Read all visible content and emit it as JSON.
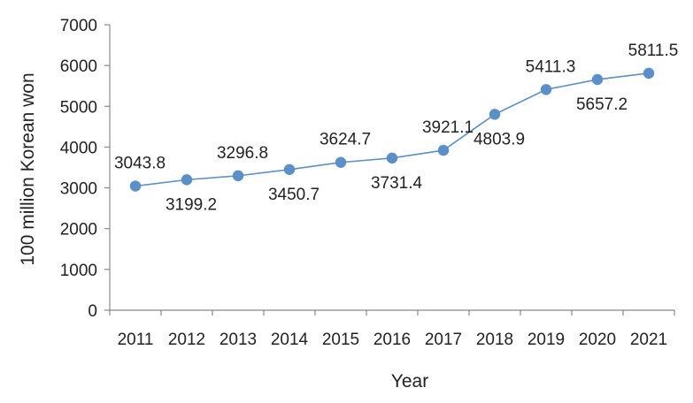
{
  "chart_data": {
    "type": "line",
    "title": "",
    "xlabel": "Year",
    "ylabel": "100 million Korean won",
    "ylim": [
      0,
      7000
    ],
    "yticks": [
      0,
      1000,
      2000,
      3000,
      4000,
      5000,
      6000,
      7000
    ],
    "categories": [
      "2011",
      "2012",
      "2013",
      "2014",
      "2015",
      "2016",
      "2017",
      "2018",
      "2019",
      "2020",
      "2021"
    ],
    "series": [
      {
        "values": [
          3043.8,
          3199.2,
          3296.8,
          3450.7,
          3624.7,
          3731.4,
          3921.1,
          4803.9,
          5411.3,
          5657.2,
          5811.5
        ],
        "labels": [
          "3043.8",
          "3199.2",
          "3296.8",
          "3450.7",
          "3624.7",
          "3731.4",
          "3921.1",
          "4803.9",
          "5411.3",
          "5657.2",
          "5811.5"
        ],
        "label_position": [
          "above",
          "below",
          "above",
          "below",
          "above",
          "below",
          "above",
          "below",
          "above",
          "below",
          "above"
        ],
        "color": "#5b8fc7"
      }
    ],
    "grid": false,
    "legend": "none"
  }
}
